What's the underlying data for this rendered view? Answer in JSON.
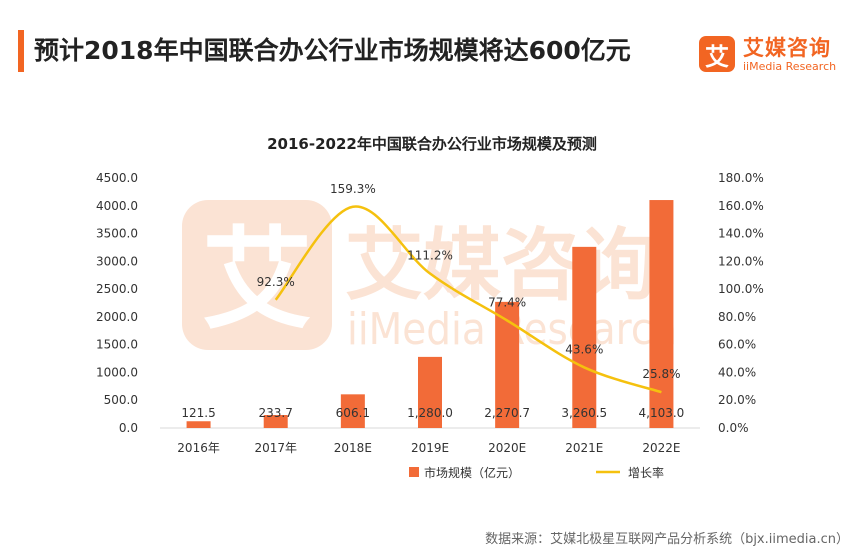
{
  "header": {
    "title": "预计2018年中国联合办公行业市场规模将达600亿元",
    "brand_logo": "艾",
    "brand_cn": "艾媒咨询",
    "brand_en": "iiMedia Research"
  },
  "watermark": {
    "logo": "艾",
    "cn": "艾媒咨询",
    "en": "iiMedia Research"
  },
  "footer": {
    "source": "数据来源：艾媒北极星互联网产品分析系统（bjx.iimedia.cn）"
  },
  "colors": {
    "accent": "#f26522",
    "bar": "#f26b38",
    "line": "#f5c10e",
    "watermark": "#fbe3d4"
  },
  "chart_data": {
    "type": "bar",
    "title": "2016-2022年中国联合办公行业市场规模及预测",
    "categories": [
      "2016年",
      "2017年",
      "2018E",
      "2019E",
      "2020E",
      "2021E",
      "2022E"
    ],
    "series": [
      {
        "name": "市场规模（亿元）",
        "type": "bar",
        "axis": "left",
        "values": [
          121.5,
          233.7,
          606.1,
          1280.0,
          2270.7,
          3260.5,
          4103.0
        ],
        "labels": [
          "121.5",
          "233.7",
          "606.1",
          "1,280.0",
          "2,270.7",
          "3,260.5",
          "4,103.0"
        ]
      },
      {
        "name": "增长率",
        "type": "line",
        "axis": "right",
        "smooth": true,
        "values": [
          null,
          92.3,
          159.3,
          111.2,
          77.4,
          43.6,
          25.8
        ],
        "labels": [
          "",
          "92.3%",
          "159.3%",
          "111.2%",
          "77.4%",
          "43.6%",
          "25.8%"
        ]
      }
    ],
    "y_left": {
      "lim": [
        0,
        4500
      ],
      "ticks": [
        "0.0",
        "500.0",
        "1000.0",
        "1500.0",
        "2000.0",
        "2500.0",
        "3000.0",
        "3500.0",
        "4000.0",
        "4500.0"
      ]
    },
    "y_right": {
      "lim": [
        0,
        180
      ],
      "ticks": [
        "0.0%",
        "20.0%",
        "40.0%",
        "60.0%",
        "80.0%",
        "100.0%",
        "120.0%",
        "140.0%",
        "160.0%",
        "180.0%"
      ]
    },
    "grid": false,
    "legend_position": "bottom"
  }
}
